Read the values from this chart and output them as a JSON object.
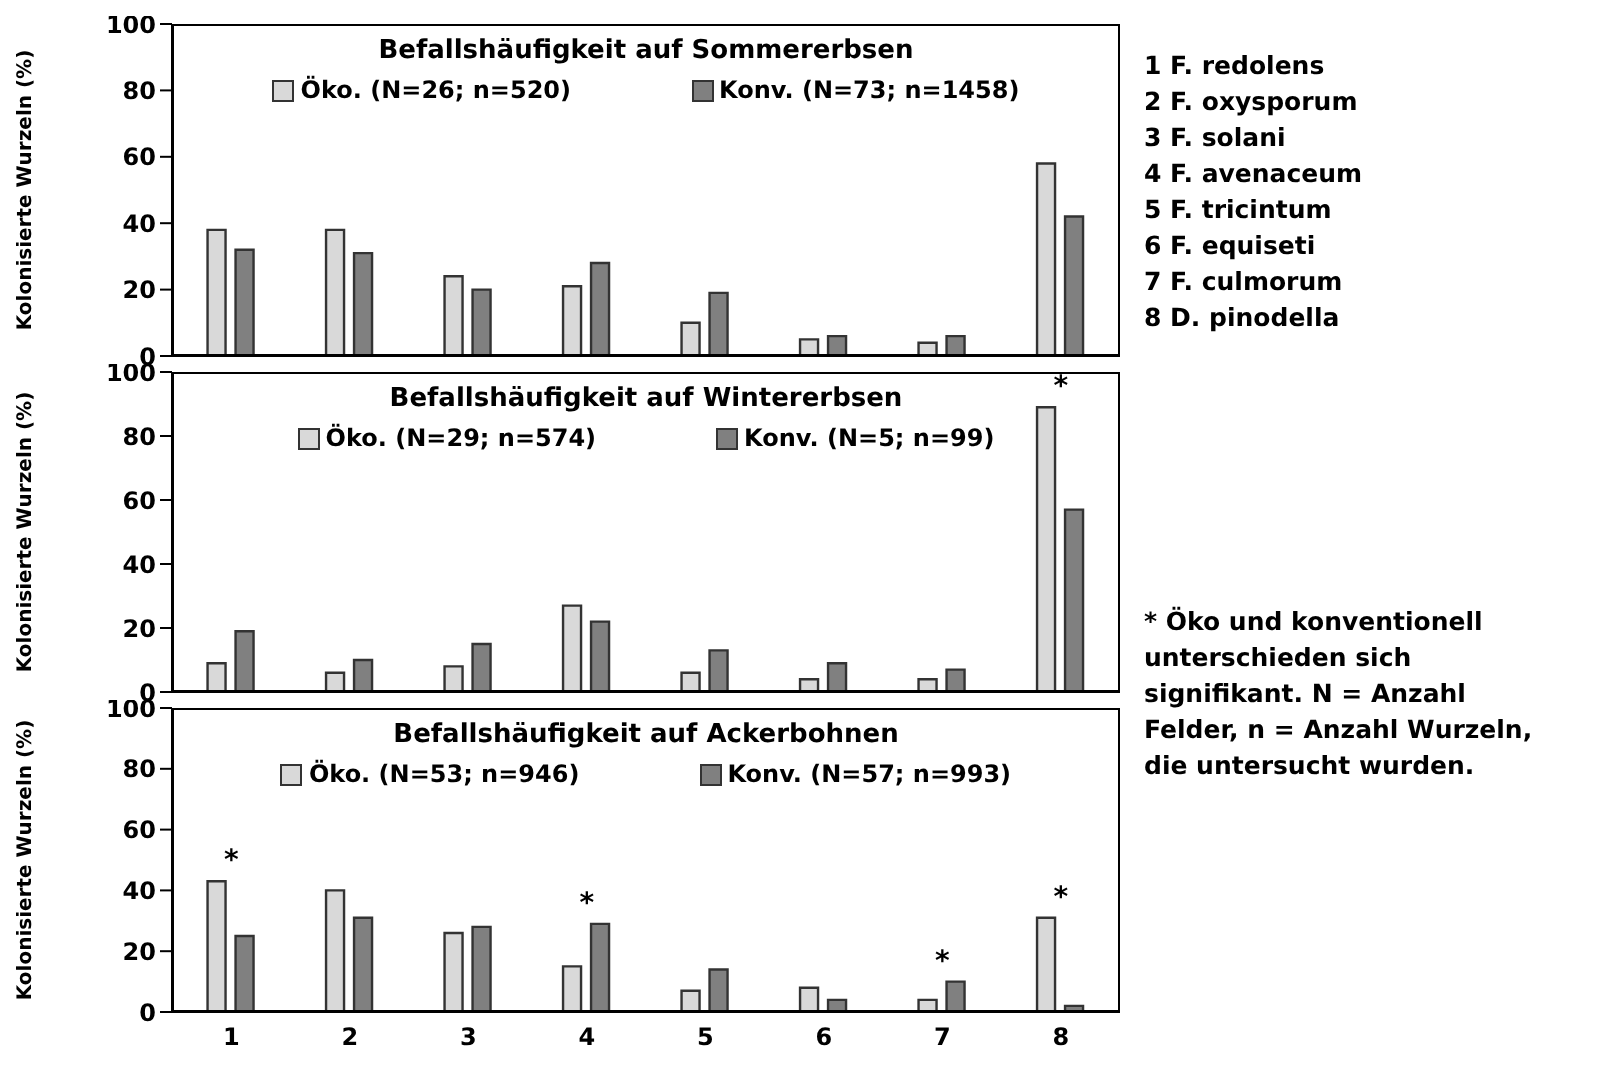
{
  "chart_data": [
    {
      "type": "bar",
      "title": "Befallshäufigkeit auf Sommererbsen",
      "ylabel": "Kolonisierte Wurzeln (%)",
      "categories": [
        "1",
        "2",
        "3",
        "4",
        "5",
        "6",
        "7",
        "8"
      ],
      "ylim": [
        0,
        100
      ],
      "yticks": [
        0,
        20,
        40,
        60,
        80,
        100
      ],
      "legend": "top",
      "tick_labels": "y",
      "series": [
        {
          "name": "Öko. (N=26; n=520)",
          "color": "#d9d9d9",
          "values": [
            38,
            38,
            24,
            21,
            10,
            5,
            4,
            58
          ]
        },
        {
          "name": "Konv. (N=73; n=1458)",
          "color": "#808080",
          "values": [
            32,
            31,
            20,
            28,
            19,
            6,
            6,
            42
          ]
        }
      ],
      "annotations": [
        "1 F. redolens",
        "2 F. oxysporum",
        "3 F. solani",
        "4 F. avenaceum",
        "5 F. tricintum",
        "6 F. equiseti",
        "7 F. culmorum",
        "8 D. pinodella"
      ]
    },
    {
      "type": "bar",
      "title": "Befallshäufigkeit auf Wintererbsen",
      "ylabel": "Kolonisierte Wurzeln (%)",
      "categories": [
        "1",
        "2",
        "3",
        "4",
        "5",
        "6",
        "7",
        "8"
      ],
      "ylim": [
        0,
        100
      ],
      "yticks": [
        0,
        20,
        40,
        60,
        80,
        100
      ],
      "legend": "top",
      "tick_labels": "y",
      "series": [
        {
          "name": "Öko. (N=29; n=574)",
          "color": "#d9d9d9",
          "values": [
            9,
            6,
            8,
            27,
            6,
            4,
            4,
            89
          ]
        },
        {
          "name": "Konv. (N=5; n=99)",
          "color": "#808080",
          "values": [
            19,
            10,
            15,
            22,
            13,
            9,
            7,
            57
          ]
        }
      ],
      "annotations": [
        {
          "text": "*",
          "x": "8",
          "y": 89
        },
        "* Öko und konventionell unterschieden sich signifikant. N = Anzahl Felder, n = Anzahl Wurzeln, die untersucht wurden."
      ]
    },
    {
      "type": "bar",
      "title": "Befallshäufigkeit auf Ackerbohnen",
      "ylabel": "Kolonisierte Wurzeln (%)",
      "categories": [
        "1",
        "2",
        "3",
        "4",
        "5",
        "6",
        "7",
        "8"
      ],
      "ylim": [
        0,
        100
      ],
      "yticks": [
        0,
        20,
        40,
        60,
        80,
        100
      ],
      "legend": "top",
      "series": [
        {
          "name": "Öko. (N=53; n=946)",
          "color": "#d9d9d9",
          "values": [
            43,
            40,
            26,
            15,
            7,
            8,
            4,
            31
          ]
        },
        {
          "name": "Konv. (N=57; n=993)",
          "color": "#808080",
          "values": [
            25,
            31,
            28,
            29,
            14,
            4,
            10,
            2
          ]
        }
      ],
      "annotations": [
        {
          "text": "*",
          "x": "1",
          "y": 43
        },
        {
          "text": "*",
          "x": "4",
          "y": 29
        },
        {
          "text": "*",
          "x": "7",
          "y": 10
        },
        {
          "text": "*",
          "x": "8",
          "y": 31
        }
      ]
    }
  ]
}
